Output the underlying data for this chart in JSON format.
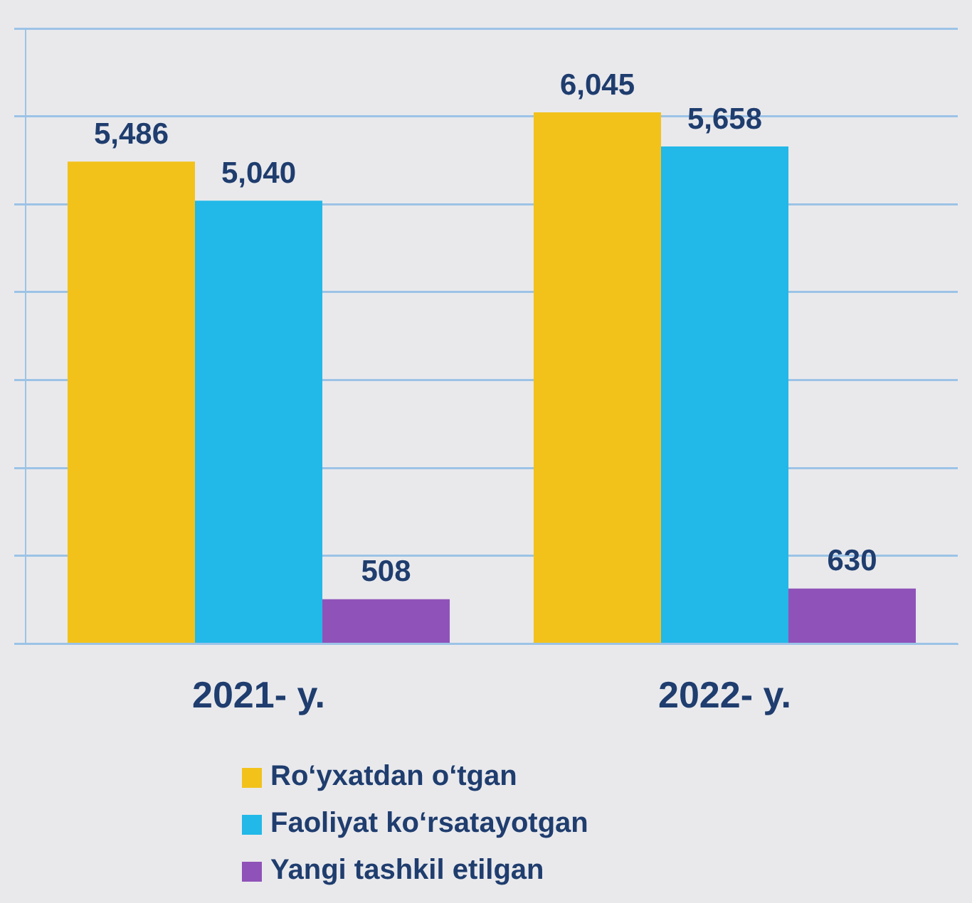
{
  "chart_data": {
    "type": "bar",
    "categories": [
      "2021- y.",
      "2022- y."
    ],
    "series": [
      {
        "name": "Ro‘yxatdan o‘tgan",
        "color": "#f2c21b",
        "values": [
          5486,
          6045
        ],
        "value_labels": [
          "5,486",
          "6,045"
        ]
      },
      {
        "name": "Faoliyat ko‘rsatayotgan",
        "color": "#22b8e8",
        "values": [
          5040,
          5658
        ],
        "value_labels": [
          "5,040",
          "5,658"
        ]
      },
      {
        "name": "Yangi tashkil etilgan",
        "color": "#8f52b8",
        "values": [
          508,
          630
        ],
        "value_labels": [
          "508",
          "630"
        ]
      }
    ],
    "ylim": [
      0,
      7000
    ],
    "yticks": [
      {
        "value": 0,
        "label": null
      },
      {
        "value": 1000,
        "label": null
      },
      {
        "value": 2000,
        "label": null
      },
      {
        "value": 3000,
        "label": null
      },
      {
        "value": 4000,
        "label": null
      },
      {
        "value": 5000,
        "label": null
      },
      {
        "value": 6000,
        "label": null
      },
      {
        "value": 7000,
        "label": null
      }
    ],
    "grid": "y",
    "tick_labels": "x",
    "legend": "bottom"
  }
}
